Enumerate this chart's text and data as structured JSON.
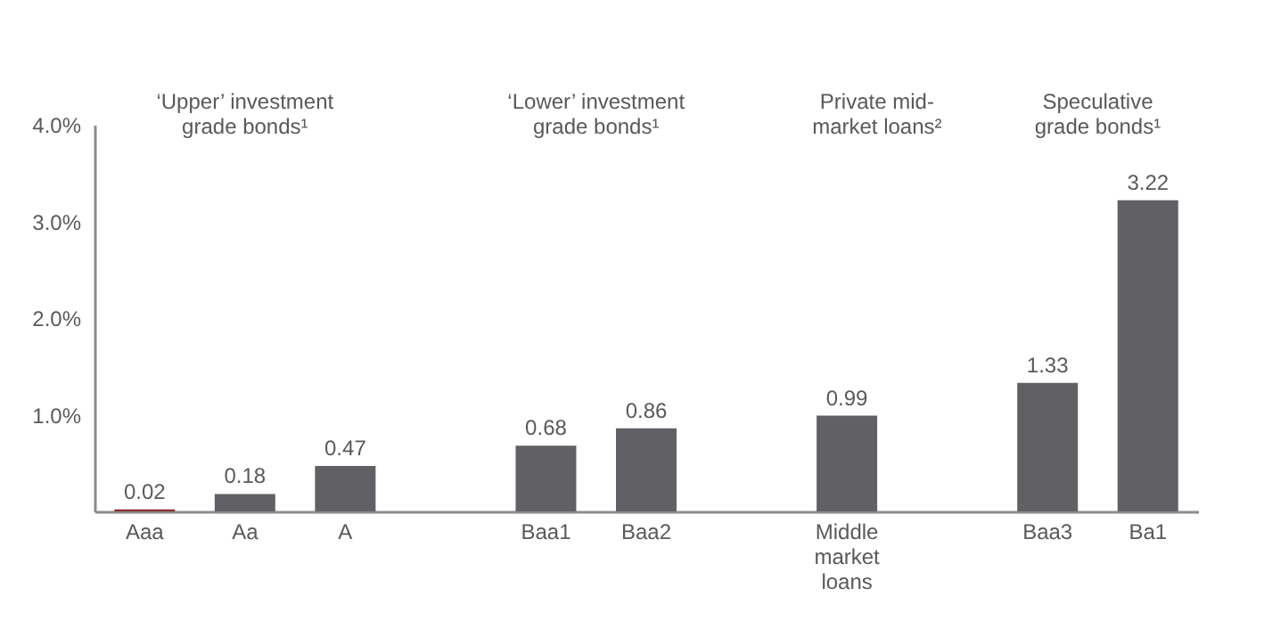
{
  "chart_data": {
    "type": "bar",
    "categories": [
      "Aaa",
      "Aa",
      "A",
      null,
      "Baa1",
      "Baa2",
      null,
      "Middle market loans",
      null,
      "Baa3",
      "Ba1"
    ],
    "values": [
      0.02,
      0.18,
      0.47,
      null,
      0.68,
      0.86,
      null,
      0.99,
      null,
      1.33,
      3.22
    ],
    "colors": [
      "#8b2f35",
      "#616165",
      "#616165",
      "#616165",
      "#616165",
      "#616165",
      "#616165",
      "#616165",
      "#616165",
      "#616165",
      "#616165"
    ],
    "ylim": [
      0,
      4
    ],
    "yticks": [
      {
        "value": 1,
        "label": "1.0%"
      },
      {
        "value": 2,
        "label": "2.0%"
      },
      {
        "value": 3,
        "label": "3.0%"
      },
      {
        "value": 4,
        "label": "4.0%"
      }
    ],
    "annotations": [
      "‘Upper’ investment grade bonds¹",
      "‘Lower’ investment grade bonds¹",
      "Private mid-market loans²",
      "Speculative grade bonds¹"
    ],
    "data_labels": true,
    "grid": false
  }
}
